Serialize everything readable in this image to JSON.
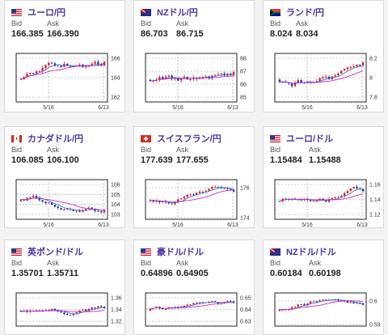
{
  "colors": {
    "pair_text": "#4a33a8",
    "up_candle": "#e0202a",
    "down_candle": "#1f3aa8",
    "ma_short": "#3a7bd5",
    "ma_long": "#c22bc2"
  },
  "cards": [
    {
      "name": "jpy-usd",
      "flag": "us-flag-icon",
      "pair": "ユーロ/円",
      "bid_label": "Bid",
      "ask_label": "Ask",
      "bid": "166.385",
      "ask": "166.390",
      "chart_data": {
        "type": "candlestick",
        "x_ticks": [
          "5/16",
          "6/13"
        ],
        "y_ticks": [
          "166",
          "164",
          "162"
        ],
        "trend": "up"
      }
    },
    {
      "name": "nzd-jpy",
      "flag": "nz-flag-icon",
      "pair": "NZドル/円",
      "bid_label": "Bid",
      "ask_label": "Ask",
      "bid": "86.703",
      "ask": "86.715",
      "chart_data": {
        "type": "candlestick",
        "x_ticks": [
          "5/16",
          "6/13"
        ],
        "y_ticks": [
          "88",
          "87",
          "86",
          "85"
        ],
        "trend": "flat"
      }
    },
    {
      "name": "zar-jpy",
      "flag": "za-flag-icon",
      "pair": "ランド/円",
      "bid_label": "Bid",
      "ask_label": "Ask",
      "bid": "8.024",
      "ask": "8.034",
      "chart_data": {
        "type": "candlestick",
        "x_ticks": [
          "5/16",
          "6/13"
        ],
        "y_ticks": [
          "8.2",
          "8",
          "7.8"
        ],
        "trend": "up"
      }
    },
    {
      "name": "cad-jpy",
      "flag": "ca-flag-icon",
      "pair": "カナダドル/円",
      "bid_label": "Bid",
      "ask_label": "Ask",
      "bid": "106.085",
      "ask": "106.100",
      "chart_data": {
        "type": "candlestick",
        "x_ticks": [
          "5/16",
          "6/13"
        ],
        "y_ticks": [
          "106",
          "105",
          "104",
          "103"
        ],
        "trend": "flat"
      }
    },
    {
      "name": "chf-jpy",
      "flag": "ch-flag-icon",
      "pair": "スイスフラン/円",
      "bid_label": "Bid",
      "ask_label": "Ask",
      "bid": "177.639",
      "ask": "177.655",
      "chart_data": {
        "type": "candlestick",
        "x_ticks": [
          "5/16",
          "6/13"
        ],
        "y_ticks": [
          "176",
          "174"
        ],
        "trend": "up"
      }
    },
    {
      "name": "eur-usd",
      "flag": "us-flag-icon",
      "pair": "ユーロ/ドル",
      "bid_label": "Bid",
      "ask_label": "Ask",
      "bid": "1.15484",
      "ask": "1.15488",
      "chart_data": {
        "type": "candlestick",
        "x_ticks": [
          "5/16",
          "6/13"
        ],
        "y_ticks": [
          "1.16",
          "1.14",
          "1.12"
        ],
        "trend": "up"
      }
    },
    {
      "name": "gbp-usd",
      "flag": "us-flag-icon",
      "pair": "英ポンド/ドル",
      "bid_label": "Bid",
      "ask_label": "Ask",
      "bid": "1.35701",
      "ask": "1.35711",
      "chart_data": {
        "type": "candlestick",
        "x_ticks": [],
        "y_ticks": [
          "1.36",
          "1.34",
          "1.32"
        ],
        "trend": "up"
      }
    },
    {
      "name": "aud-usd",
      "flag": "us-flag-icon",
      "pair": "豪ドル/ドル",
      "bid_label": "Bid",
      "ask_label": "Ask",
      "bid": "0.64896",
      "ask": "0.64905",
      "chart_data": {
        "type": "candlestick",
        "x_ticks": [],
        "y_ticks": [
          "0.65",
          "0.64",
          "0.63"
        ],
        "trend": "up"
      }
    },
    {
      "name": "nzd-usd",
      "flag": "nz-flag-icon",
      "pair": "NZドル/ドル",
      "bid_label": "Bid",
      "ask_label": "Ask",
      "bid": "0.60184",
      "ask": "0.60198",
      "chart_data": {
        "type": "candlestick",
        "x_ticks": [],
        "y_ticks": [
          "0.6",
          "0.59"
        ],
        "trend": "up"
      }
    }
  ]
}
